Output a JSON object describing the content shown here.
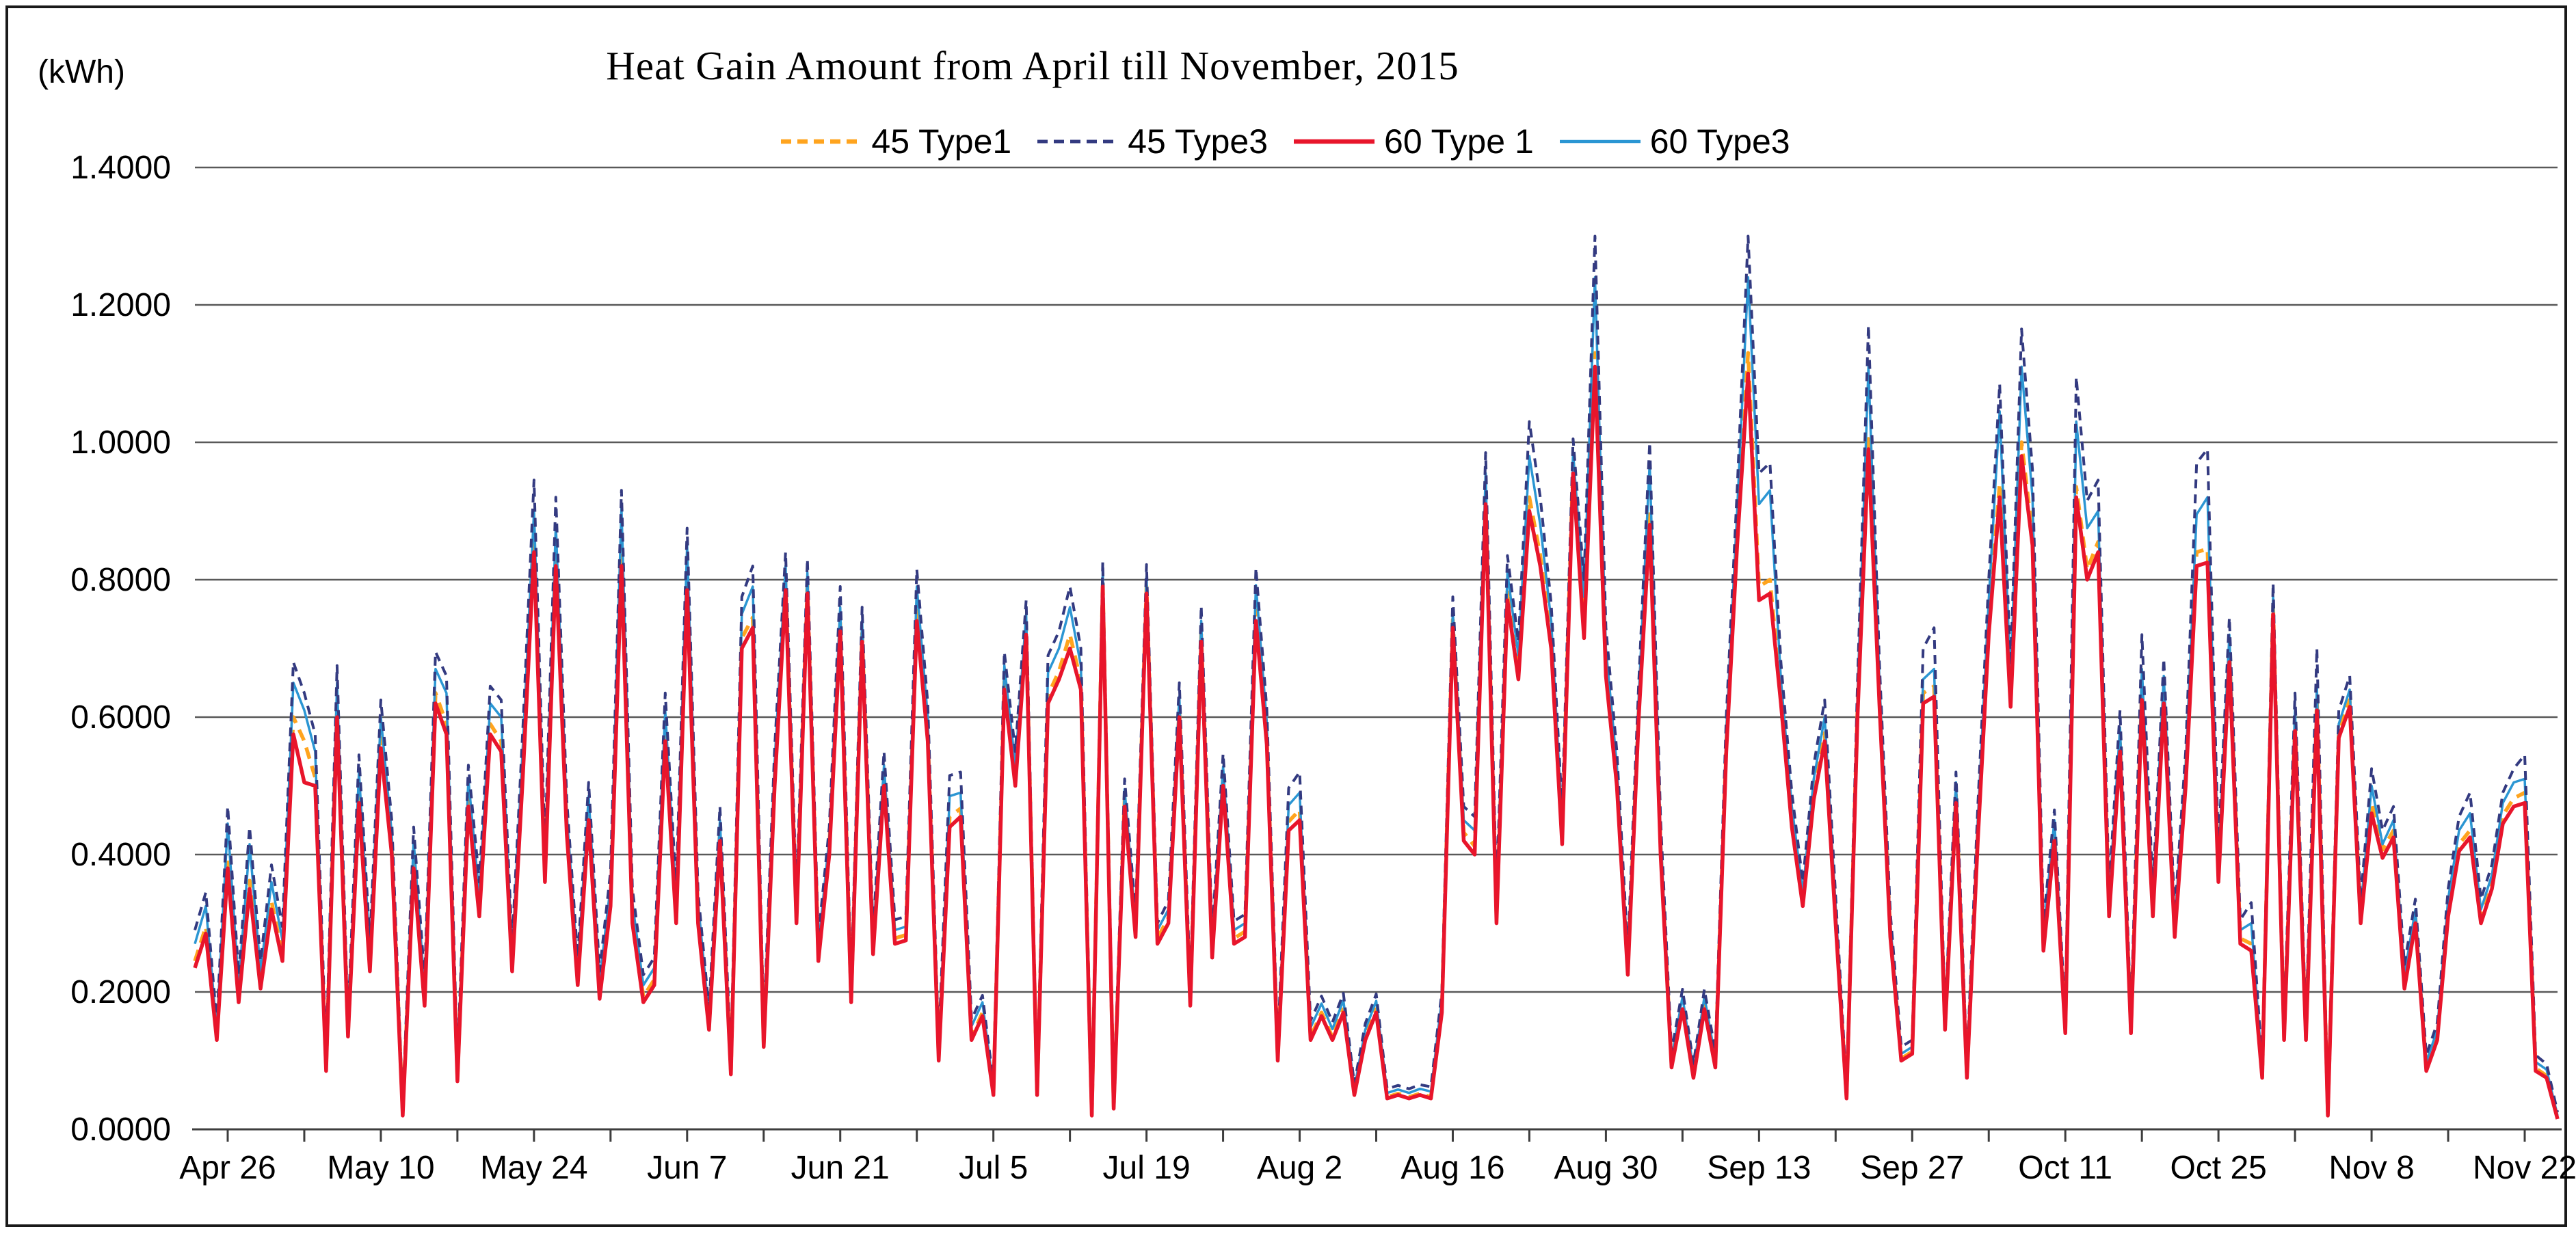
{
  "chart_data": {
    "type": "line",
    "title": "Heat Gain Amount from April till November, 2015",
    "y_unit_label": "(kWh)",
    "ylabel": "",
    "xlabel": "",
    "ylim": [
      0,
      1.4
    ],
    "y_tick_step": 0.2,
    "y_tick_labels": [
      "0.0000",
      "0.2000",
      "0.4000",
      "0.6000",
      "0.8000",
      "1.0000",
      "1.2000",
      "1.4000"
    ],
    "grid": "horizontal-on",
    "grid_color": "#595959",
    "axis_color": "#3d3d3d",
    "legend_position": "top-center",
    "n_points": 217,
    "x_minor_tick_interval": 7,
    "x_first_tick_index": 3,
    "x_tick_labels": [
      {
        "label": "Apr 26",
        "index": 3
      },
      {
        "label": "May 10",
        "index": 17
      },
      {
        "label": "May 24",
        "index": 31
      },
      {
        "label": "Jun 7",
        "index": 45
      },
      {
        "label": "Jun 21",
        "index": 59
      },
      {
        "label": "Jul 5",
        "index": 73
      },
      {
        "label": "Jul 19",
        "index": 87
      },
      {
        "label": "Aug 2",
        "index": 101
      },
      {
        "label": "Aug 16",
        "index": 115
      },
      {
        "label": "Aug 30",
        "index": 129
      },
      {
        "label": "Sep 13",
        "index": 143
      },
      {
        "label": "Sep 27",
        "index": 157
      },
      {
        "label": "Oct 11",
        "index": 171
      },
      {
        "label": "Oct 25",
        "index": 185
      },
      {
        "label": "Nov 8",
        "index": 199
      },
      {
        "label": "Nov 22",
        "index": 213
      }
    ],
    "draw_order": [
      0,
      3,
      1,
      2
    ],
    "series": [
      {
        "name": "45 Type1",
        "color": "#FFA41E",
        "style": "dashed",
        "dash": "17 11",
        "width": 5.5,
        "values": [
          0.245,
          0.295,
          0.134,
          0.392,
          0.193,
          0.362,
          0.213,
          0.332,
          0.253,
          0.6,
          0.565,
          0.512,
          0.089,
          0.615,
          0.139,
          0.487,
          0.238,
          0.57,
          0.412,
          0.024,
          0.392,
          0.188,
          0.635,
          0.59,
          0.074,
          0.482,
          0.318,
          0.59,
          0.565,
          0.238,
          0.532,
          0.855,
          0.37,
          0.835,
          0.442,
          0.218,
          0.462,
          0.198,
          0.333,
          0.835,
          0.308,
          0.193,
          0.218,
          0.58,
          0.308,
          0.8,
          0.308,
          0.149,
          0.432,
          0.084,
          0.715,
          0.745,
          0.124,
          0.512,
          0.797,
          0.308,
          0.792,
          0.253,
          0.412,
          0.737,
          0.189,
          0.722,
          0.263,
          0.512,
          0.278,
          0.283,
          0.755,
          0.577,
          0.104,
          0.455,
          0.467,
          0.134,
          0.17,
          0.053,
          0.652,
          0.512,
          0.732,
          0.053,
          0.632,
          0.667,
          0.72,
          0.652,
          0.022,
          0.798,
          0.033,
          0.482,
          0.288,
          0.79,
          0.278,
          0.308,
          0.612,
          0.185,
          0.722,
          0.258,
          0.512,
          0.278,
          0.288,
          0.755,
          0.572,
          0.104,
          0.448,
          0.465,
          0.134,
          0.17,
          0.134,
          0.175,
          0.052,
          0.134,
          0.175,
          0.047,
          0.052,
          0.047,
          0.052,
          0.047,
          0.175,
          0.742,
          0.432,
          0.412,
          0.92,
          0.308,
          0.785,
          0.667,
          0.92,
          0.835,
          0.712,
          0.427,
          0.97,
          0.73,
          1.13,
          0.672,
          0.512,
          0.231,
          0.612,
          0.9,
          0.412,
          0.094,
          0.18,
          0.078,
          0.18,
          0.094,
          0.562,
          0.865,
          1.13,
          0.79,
          0.8,
          0.632,
          0.452,
          0.333,
          0.492,
          0.577,
          0.308,
          0.047,
          0.612,
          1.005,
          0.632,
          0.288,
          0.103,
          0.113,
          0.635,
          0.645,
          0.149,
          0.487,
          0.078,
          0.432,
          0.735,
          0.94,
          0.627,
          1.0,
          0.865,
          0.268,
          0.432,
          0.144,
          0.935,
          0.815,
          0.855,
          0.318,
          0.562,
          0.144,
          0.64,
          0.318,
          0.632,
          0.288,
          0.512,
          0.84,
          0.845,
          0.37,
          0.7,
          0.278,
          0.27,
          0.078,
          0.762,
          0.134,
          0.592,
          0.134,
          0.625,
          0.023,
          0.578,
          0.625,
          0.308,
          0.475,
          0.407,
          0.435,
          0.212,
          0.308,
          0.089,
          0.134,
          0.318,
          0.415,
          0.435,
          0.308,
          0.362,
          0.457,
          0.482,
          0.49,
          0.089,
          0.078,
          0.017
        ]
      },
      {
        "name": "45 Type3",
        "color": "#333A80",
        "style": "dashed",
        "dash": "13 9",
        "width": 4,
        "values": [
          0.29,
          0.345,
          0.155,
          0.47,
          0.225,
          0.44,
          0.245,
          0.385,
          0.295,
          0.68,
          0.635,
          0.575,
          0.11,
          0.675,
          0.16,
          0.545,
          0.275,
          0.625,
          0.45,
          0.034,
          0.44,
          0.22,
          0.695,
          0.66,
          0.095,
          0.53,
          0.36,
          0.645,
          0.625,
          0.27,
          0.59,
          0.945,
          0.41,
          0.92,
          0.48,
          0.25,
          0.505,
          0.23,
          0.375,
          0.93,
          0.35,
          0.225,
          0.25,
          0.635,
          0.35,
          0.875,
          0.345,
          0.175,
          0.47,
          0.105,
          0.775,
          0.82,
          0.15,
          0.555,
          0.84,
          0.34,
          0.83,
          0.28,
          0.44,
          0.79,
          0.215,
          0.76,
          0.29,
          0.55,
          0.305,
          0.31,
          0.815,
          0.62,
          0.125,
          0.515,
          0.52,
          0.16,
          0.195,
          0.068,
          0.695,
          0.55,
          0.77,
          0.068,
          0.69,
          0.725,
          0.79,
          0.7,
          0.035,
          0.826,
          0.047,
          0.51,
          0.315,
          0.822,
          0.3,
          0.333,
          0.65,
          0.21,
          0.762,
          0.285,
          0.547,
          0.303,
          0.313,
          0.817,
          0.612,
          0.124,
          0.497,
          0.52,
          0.158,
          0.194,
          0.156,
          0.198,
          0.066,
          0.154,
          0.197,
          0.059,
          0.064,
          0.059,
          0.065,
          0.062,
          0.2,
          0.775,
          0.47,
          0.455,
          0.985,
          0.345,
          0.835,
          0.71,
          1.03,
          0.92,
          0.765,
          0.465,
          1.005,
          0.8,
          1.3,
          0.73,
          0.55,
          0.26,
          0.65,
          1.0,
          0.45,
          0.113,
          0.204,
          0.095,
          0.204,
          0.113,
          0.6,
          0.93,
          1.3,
          0.955,
          0.97,
          0.68,
          0.49,
          0.36,
          0.53,
          0.625,
          0.34,
          0.059,
          0.65,
          1.17,
          0.68,
          0.315,
          0.12,
          0.13,
          0.7,
          0.73,
          0.165,
          0.52,
          0.095,
          0.47,
          0.8,
          1.085,
          0.675,
          1.165,
          0.96,
          0.3,
          0.465,
          0.162,
          1.095,
          0.915,
          0.945,
          0.35,
          0.61,
          0.162,
          0.72,
          0.35,
          0.685,
          0.315,
          0.55,
          0.97,
          0.99,
          0.41,
          0.745,
          0.305,
          0.33,
          0.095,
          0.795,
          0.155,
          0.635,
          0.155,
          0.7,
          0.035,
          0.61,
          0.66,
          0.335,
          0.525,
          0.435,
          0.47,
          0.24,
          0.335,
          0.108,
          0.155,
          0.35,
          0.455,
          0.49,
          0.335,
          0.385,
          0.49,
          0.525,
          0.545,
          0.108,
          0.095,
          0.025
        ]
      },
      {
        "name": "60 Type 1",
        "color": "#E8152B",
        "style": "solid",
        "dash": "",
        "width": 5.5,
        "values": [
          0.235,
          0.285,
          0.13,
          0.38,
          0.185,
          0.35,
          0.205,
          0.32,
          0.245,
          0.575,
          0.505,
          0.5,
          0.085,
          0.6,
          0.135,
          0.475,
          0.23,
          0.555,
          0.4,
          0.02,
          0.38,
          0.18,
          0.62,
          0.575,
          0.07,
          0.47,
          0.31,
          0.575,
          0.55,
          0.23,
          0.52,
          0.84,
          0.36,
          0.82,
          0.43,
          0.21,
          0.45,
          0.19,
          0.325,
          0.82,
          0.3,
          0.185,
          0.21,
          0.565,
          0.3,
          0.785,
          0.3,
          0.145,
          0.42,
          0.08,
          0.7,
          0.73,
          0.12,
          0.5,
          0.785,
          0.3,
          0.78,
          0.245,
          0.4,
          0.725,
          0.185,
          0.71,
          0.255,
          0.5,
          0.27,
          0.275,
          0.74,
          0.565,
          0.1,
          0.44,
          0.455,
          0.13,
          0.165,
          0.05,
          0.64,
          0.5,
          0.72,
          0.05,
          0.62,
          0.655,
          0.7,
          0.64,
          0.02,
          0.79,
          0.03,
          0.47,
          0.28,
          0.78,
          0.27,
          0.3,
          0.6,
          0.18,
          0.71,
          0.25,
          0.5,
          0.27,
          0.28,
          0.74,
          0.56,
          0.1,
          0.435,
          0.45,
          0.13,
          0.165,
          0.13,
          0.17,
          0.05,
          0.13,
          0.17,
          0.045,
          0.05,
          0.045,
          0.05,
          0.045,
          0.17,
          0.73,
          0.42,
          0.4,
          0.91,
          0.3,
          0.77,
          0.655,
          0.9,
          0.82,
          0.7,
          0.415,
          0.955,
          0.715,
          1.11,
          0.66,
          0.5,
          0.225,
          0.6,
          0.88,
          0.4,
          0.09,
          0.175,
          0.075,
          0.175,
          0.09,
          0.55,
          0.85,
          1.1,
          0.77,
          0.78,
          0.62,
          0.44,
          0.325,
          0.48,
          0.565,
          0.3,
          0.045,
          0.6,
          0.99,
          0.62,
          0.28,
          0.1,
          0.11,
          0.62,
          0.63,
          0.145,
          0.475,
          0.075,
          0.42,
          0.72,
          0.92,
          0.615,
          0.98,
          0.85,
          0.26,
          0.42,
          0.14,
          0.92,
          0.8,
          0.84,
          0.31,
          0.55,
          0.14,
          0.625,
          0.31,
          0.62,
          0.28,
          0.5,
          0.82,
          0.825,
          0.36,
          0.68,
          0.27,
          0.26,
          0.075,
          0.75,
          0.13,
          0.58,
          0.13,
          0.61,
          0.02,
          0.57,
          0.615,
          0.3,
          0.46,
          0.395,
          0.425,
          0.205,
          0.3,
          0.085,
          0.13,
          0.31,
          0.405,
          0.425,
          0.3,
          0.35,
          0.445,
          0.47,
          0.475,
          0.085,
          0.075,
          0.015
        ]
      },
      {
        "name": "60 Type3",
        "color": "#2B96D3",
        "style": "solid",
        "dash": "",
        "width": 3.5,
        "values": [
          0.27,
          0.325,
          0.145,
          0.445,
          0.21,
          0.415,
          0.23,
          0.36,
          0.275,
          0.65,
          0.61,
          0.55,
          0.1,
          0.65,
          0.15,
          0.52,
          0.26,
          0.6,
          0.43,
          0.028,
          0.42,
          0.205,
          0.67,
          0.635,
          0.085,
          0.51,
          0.34,
          0.62,
          0.6,
          0.255,
          0.565,
          0.9,
          0.39,
          0.88,
          0.46,
          0.235,
          0.485,
          0.215,
          0.355,
          0.905,
          0.33,
          0.21,
          0.235,
          0.61,
          0.33,
          0.85,
          0.33,
          0.165,
          0.45,
          0.095,
          0.75,
          0.79,
          0.14,
          0.535,
          0.82,
          0.325,
          0.81,
          0.265,
          0.425,
          0.76,
          0.205,
          0.74,
          0.275,
          0.53,
          0.29,
          0.295,
          0.79,
          0.6,
          0.115,
          0.485,
          0.49,
          0.15,
          0.185,
          0.06,
          0.675,
          0.53,
          0.75,
          0.06,
          0.665,
          0.7,
          0.76,
          0.675,
          0.028,
          0.812,
          0.04,
          0.495,
          0.3,
          0.805,
          0.29,
          0.32,
          0.63,
          0.2,
          0.74,
          0.27,
          0.528,
          0.29,
          0.3,
          0.792,
          0.592,
          0.115,
          0.472,
          0.49,
          0.148,
          0.183,
          0.146,
          0.188,
          0.06,
          0.145,
          0.187,
          0.053,
          0.058,
          0.053,
          0.059,
          0.055,
          0.19,
          0.755,
          0.45,
          0.435,
          0.955,
          0.33,
          0.81,
          0.69,
          0.98,
          0.88,
          0.74,
          0.445,
          0.985,
          0.775,
          1.24,
          0.7,
          0.53,
          0.245,
          0.63,
          0.97,
          0.43,
          0.104,
          0.193,
          0.087,
          0.193,
          0.104,
          0.58,
          0.9,
          1.24,
          0.91,
          0.93,
          0.655,
          0.47,
          0.345,
          0.51,
          0.6,
          0.325,
          0.053,
          0.63,
          1.11,
          0.655,
          0.3,
          0.11,
          0.12,
          0.655,
          0.67,
          0.155,
          0.505,
          0.087,
          0.45,
          0.77,
          1.045,
          0.655,
          1.11,
          0.92,
          0.285,
          0.45,
          0.152,
          1.03,
          0.875,
          0.9,
          0.335,
          0.585,
          0.152,
          0.67,
          0.335,
          0.66,
          0.3,
          0.53,
          0.895,
          0.92,
          0.39,
          0.72,
          0.29,
          0.3,
          0.087,
          0.775,
          0.145,
          0.61,
          0.145,
          0.645,
          0.028,
          0.59,
          0.64,
          0.32,
          0.5,
          0.415,
          0.45,
          0.225,
          0.32,
          0.098,
          0.145,
          0.335,
          0.435,
          0.46,
          0.32,
          0.37,
          0.475,
          0.505,
          0.51,
          0.098,
          0.087,
          0.02
        ]
      }
    ]
  }
}
